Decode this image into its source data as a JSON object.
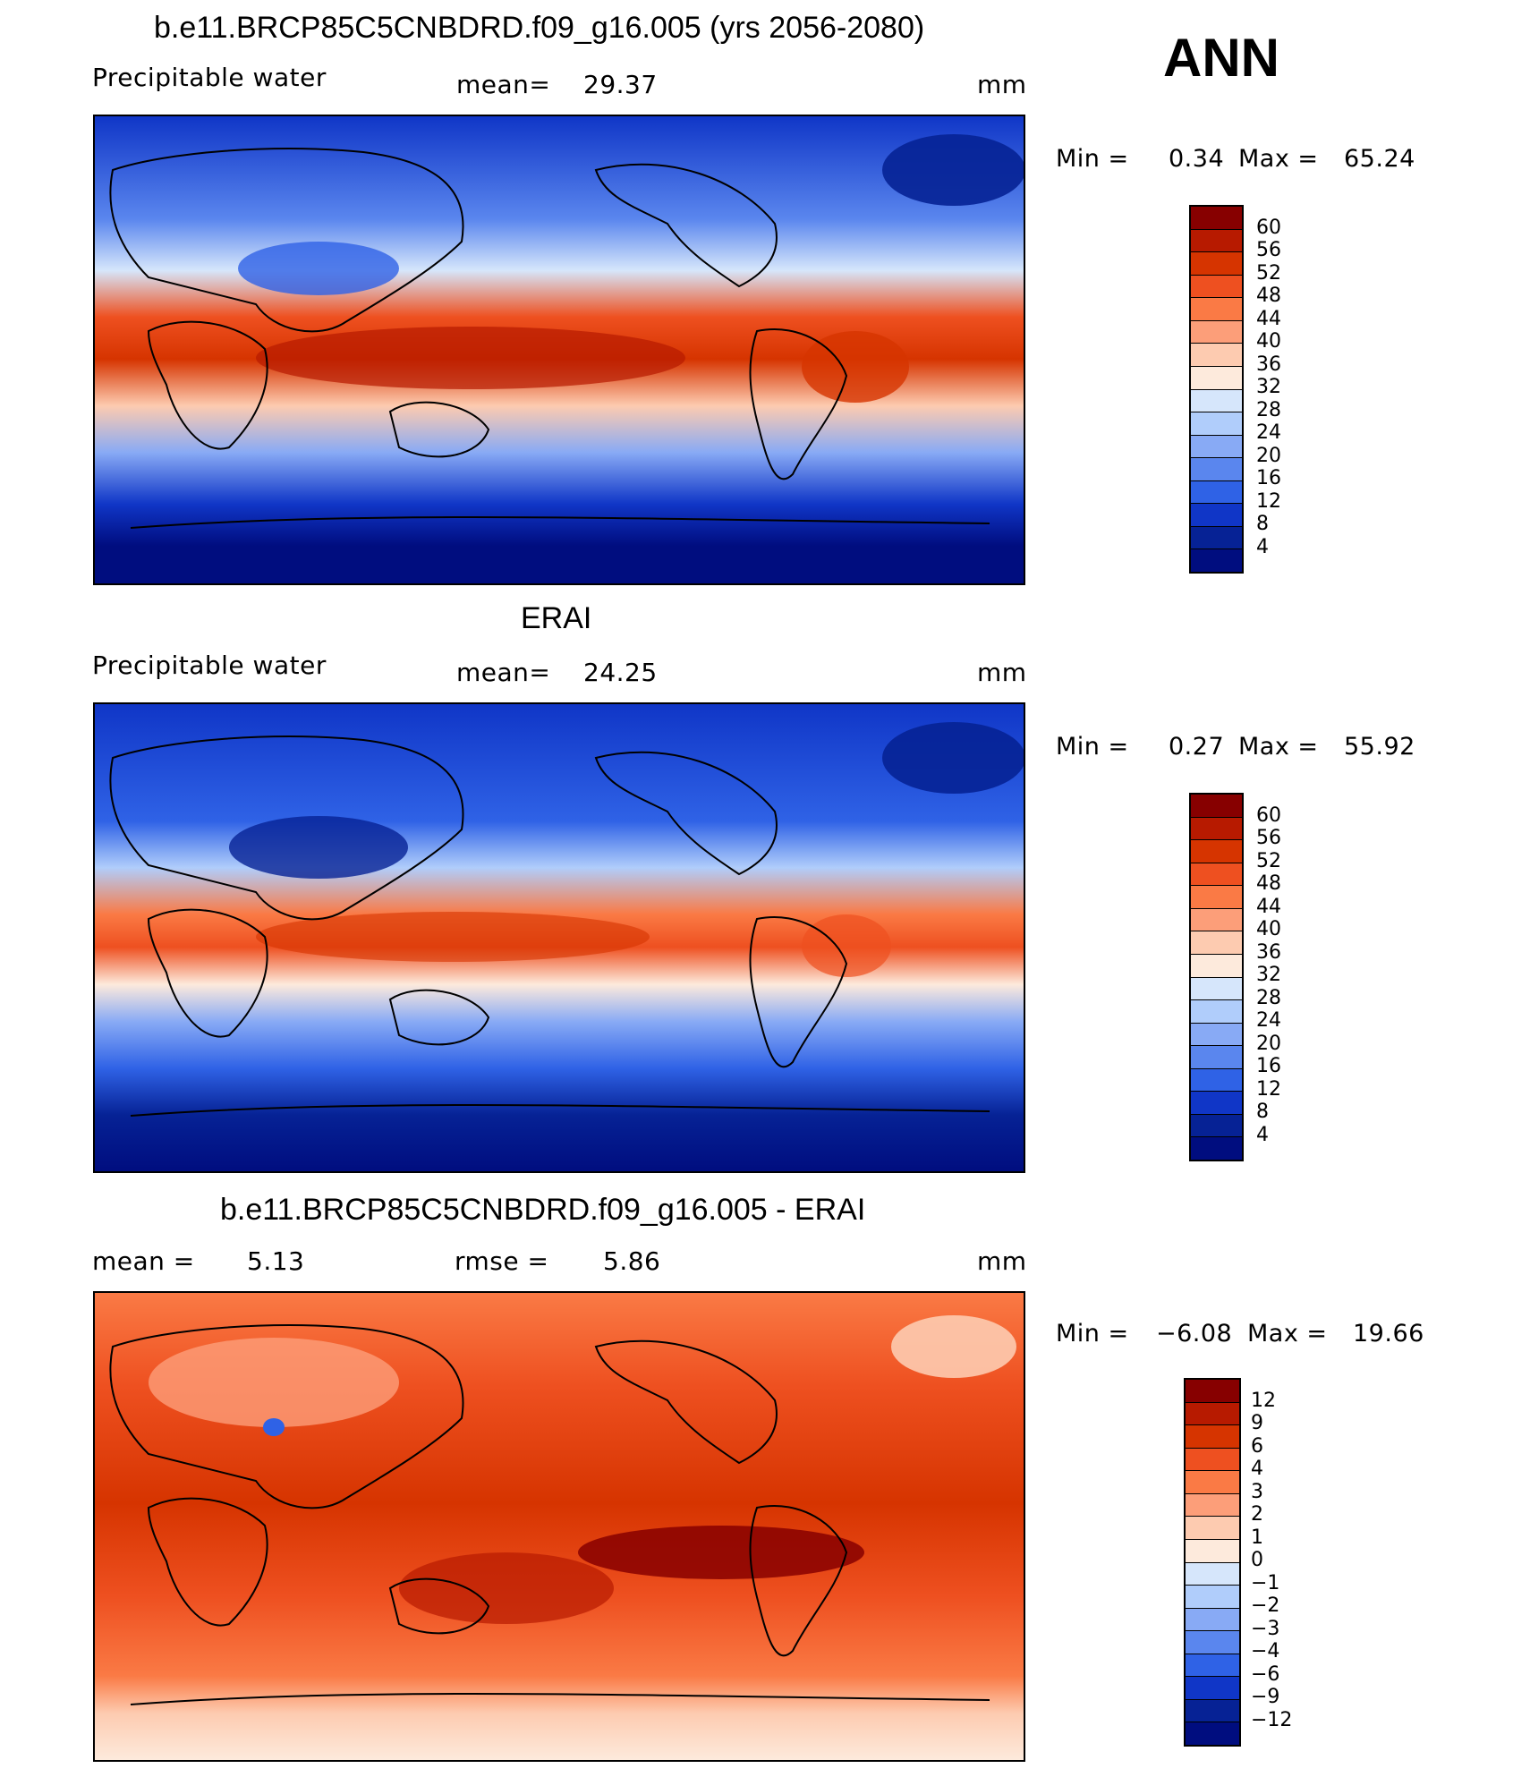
{
  "season": "ANN",
  "panels": [
    {
      "title": "b.e11.BRCP85C5CNBDRD.f09_g16.005 (yrs 2056-2080)",
      "variable": "Precipitable water",
      "mean_label": "mean=",
      "mean": "29.37",
      "units": "mm",
      "min_label": "Min =",
      "min": "0.34",
      "max_label": "Max =",
      "max": "65.24",
      "colorbar": {
        "labels": [
          "60",
          "56",
          "52",
          "48",
          "44",
          "40",
          "36",
          "32",
          "28",
          "24",
          "20",
          "16",
          "12",
          "8",
          "4"
        ],
        "colors": [
          "#870000",
          "#b71a00",
          "#d63400",
          "#ee5020",
          "#fa7a45",
          "#fc9e79",
          "#fdcbb0",
          "#fdeadc",
          "#d6e6fb",
          "#b0cdfb",
          "#88aaf5",
          "#5a86ee",
          "#2f62e6",
          "#1036c7",
          "#062295",
          "#000d7f"
        ]
      }
    },
    {
      "title": "ERAI",
      "variable": "Precipitable water",
      "mean_label": "mean=",
      "mean": "24.25",
      "units": "mm",
      "min_label": "Min =",
      "min": "0.27",
      "max_label": "Max =",
      "max": "55.92",
      "colorbar": {
        "labels": [
          "60",
          "56",
          "52",
          "48",
          "44",
          "40",
          "36",
          "32",
          "28",
          "24",
          "20",
          "16",
          "12",
          "8",
          "4"
        ],
        "colors": [
          "#870000",
          "#b71a00",
          "#d63400",
          "#ee5020",
          "#fa7a45",
          "#fc9e79",
          "#fdcbb0",
          "#fdeadc",
          "#d6e6fb",
          "#b0cdfb",
          "#88aaf5",
          "#5a86ee",
          "#2f62e6",
          "#1036c7",
          "#062295",
          "#000d7f"
        ]
      }
    },
    {
      "title": "b.e11.BRCP85C5CNBDRD.f09_g16.005 - ERAI",
      "mean_label": "mean =",
      "mean": "5.13",
      "rmse_label": "rmse =",
      "rmse": "5.86",
      "units": "mm",
      "min_label": "Min =",
      "min": "−6.08",
      "max_label": "Max =",
      "max": "19.66",
      "colorbar": {
        "labels": [
          "12",
          "9",
          "6",
          "4",
          "3",
          "2",
          "1",
          "0",
          "−1",
          "−2",
          "−3",
          "−4",
          "−6",
          "−9",
          "−12"
        ],
        "colors": [
          "#870000",
          "#b71a00",
          "#d63400",
          "#ee5020",
          "#fa7a45",
          "#fc9e79",
          "#fdcbb0",
          "#fdeadc",
          "#d6e6fb",
          "#b0cdfb",
          "#88aaf5",
          "#5a86ee",
          "#2f62e6",
          "#1036c7",
          "#062295",
          "#000d7f"
        ]
      }
    }
  ]
}
